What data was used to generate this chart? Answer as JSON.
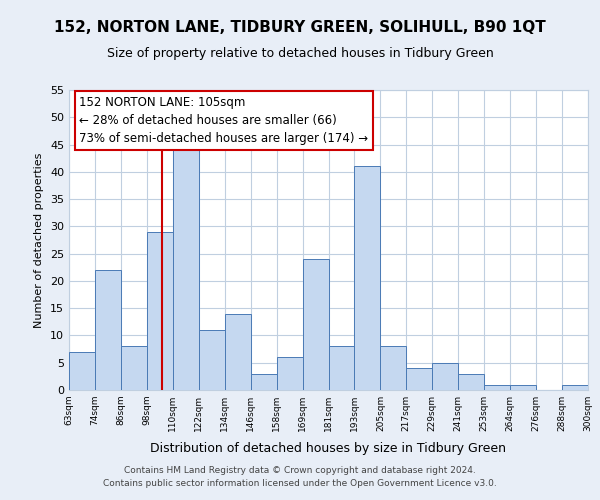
{
  "title": "152, NORTON LANE, TIDBURY GREEN, SOLIHULL, B90 1QT",
  "subtitle": "Size of property relative to detached houses in Tidbury Green",
  "xlabel": "Distribution of detached houses by size in Tidbury Green",
  "ylabel": "Number of detached properties",
  "footer_line1": "Contains HM Land Registry data © Crown copyright and database right 2024.",
  "footer_line2": "Contains public sector information licensed under the Open Government Licence v3.0.",
  "annotation_title": "152 NORTON LANE: 105sqm",
  "annotation_line2": "← 28% of detached houses are smaller (66)",
  "annotation_line3": "73% of semi-detached houses are larger (174) →",
  "bins": [
    "63sqm",
    "74sqm",
    "86sqm",
    "98sqm",
    "110sqm",
    "122sqm",
    "134sqm",
    "146sqm",
    "158sqm",
    "169sqm",
    "181sqm",
    "193sqm",
    "205sqm",
    "217sqm",
    "229sqm",
    "241sqm",
    "253sqm",
    "264sqm",
    "276sqm",
    "288sqm",
    "300sqm"
  ],
  "values": [
    7,
    22,
    8,
    29,
    44,
    11,
    14,
    3,
    6,
    24,
    8,
    41,
    8,
    4,
    5,
    3,
    1,
    1,
    0,
    1
  ],
  "bar_color": "#c5d8f0",
  "bar_edge_color": "#4a7ab5",
  "annotation_box_color": "#ffffff",
  "annotation_box_edge": "#cc0000",
  "ylim": [
    0,
    55
  ],
  "yticks": [
    0,
    5,
    10,
    15,
    20,
    25,
    30,
    35,
    40,
    45,
    50,
    55
  ],
  "bg_color": "#e8eef7",
  "plot_bg_color": "#ffffff",
  "grid_color": "#c0cfe0",
  "vline_color": "#cc0000",
  "title_fontsize": 11,
  "subtitle_fontsize": 9
}
